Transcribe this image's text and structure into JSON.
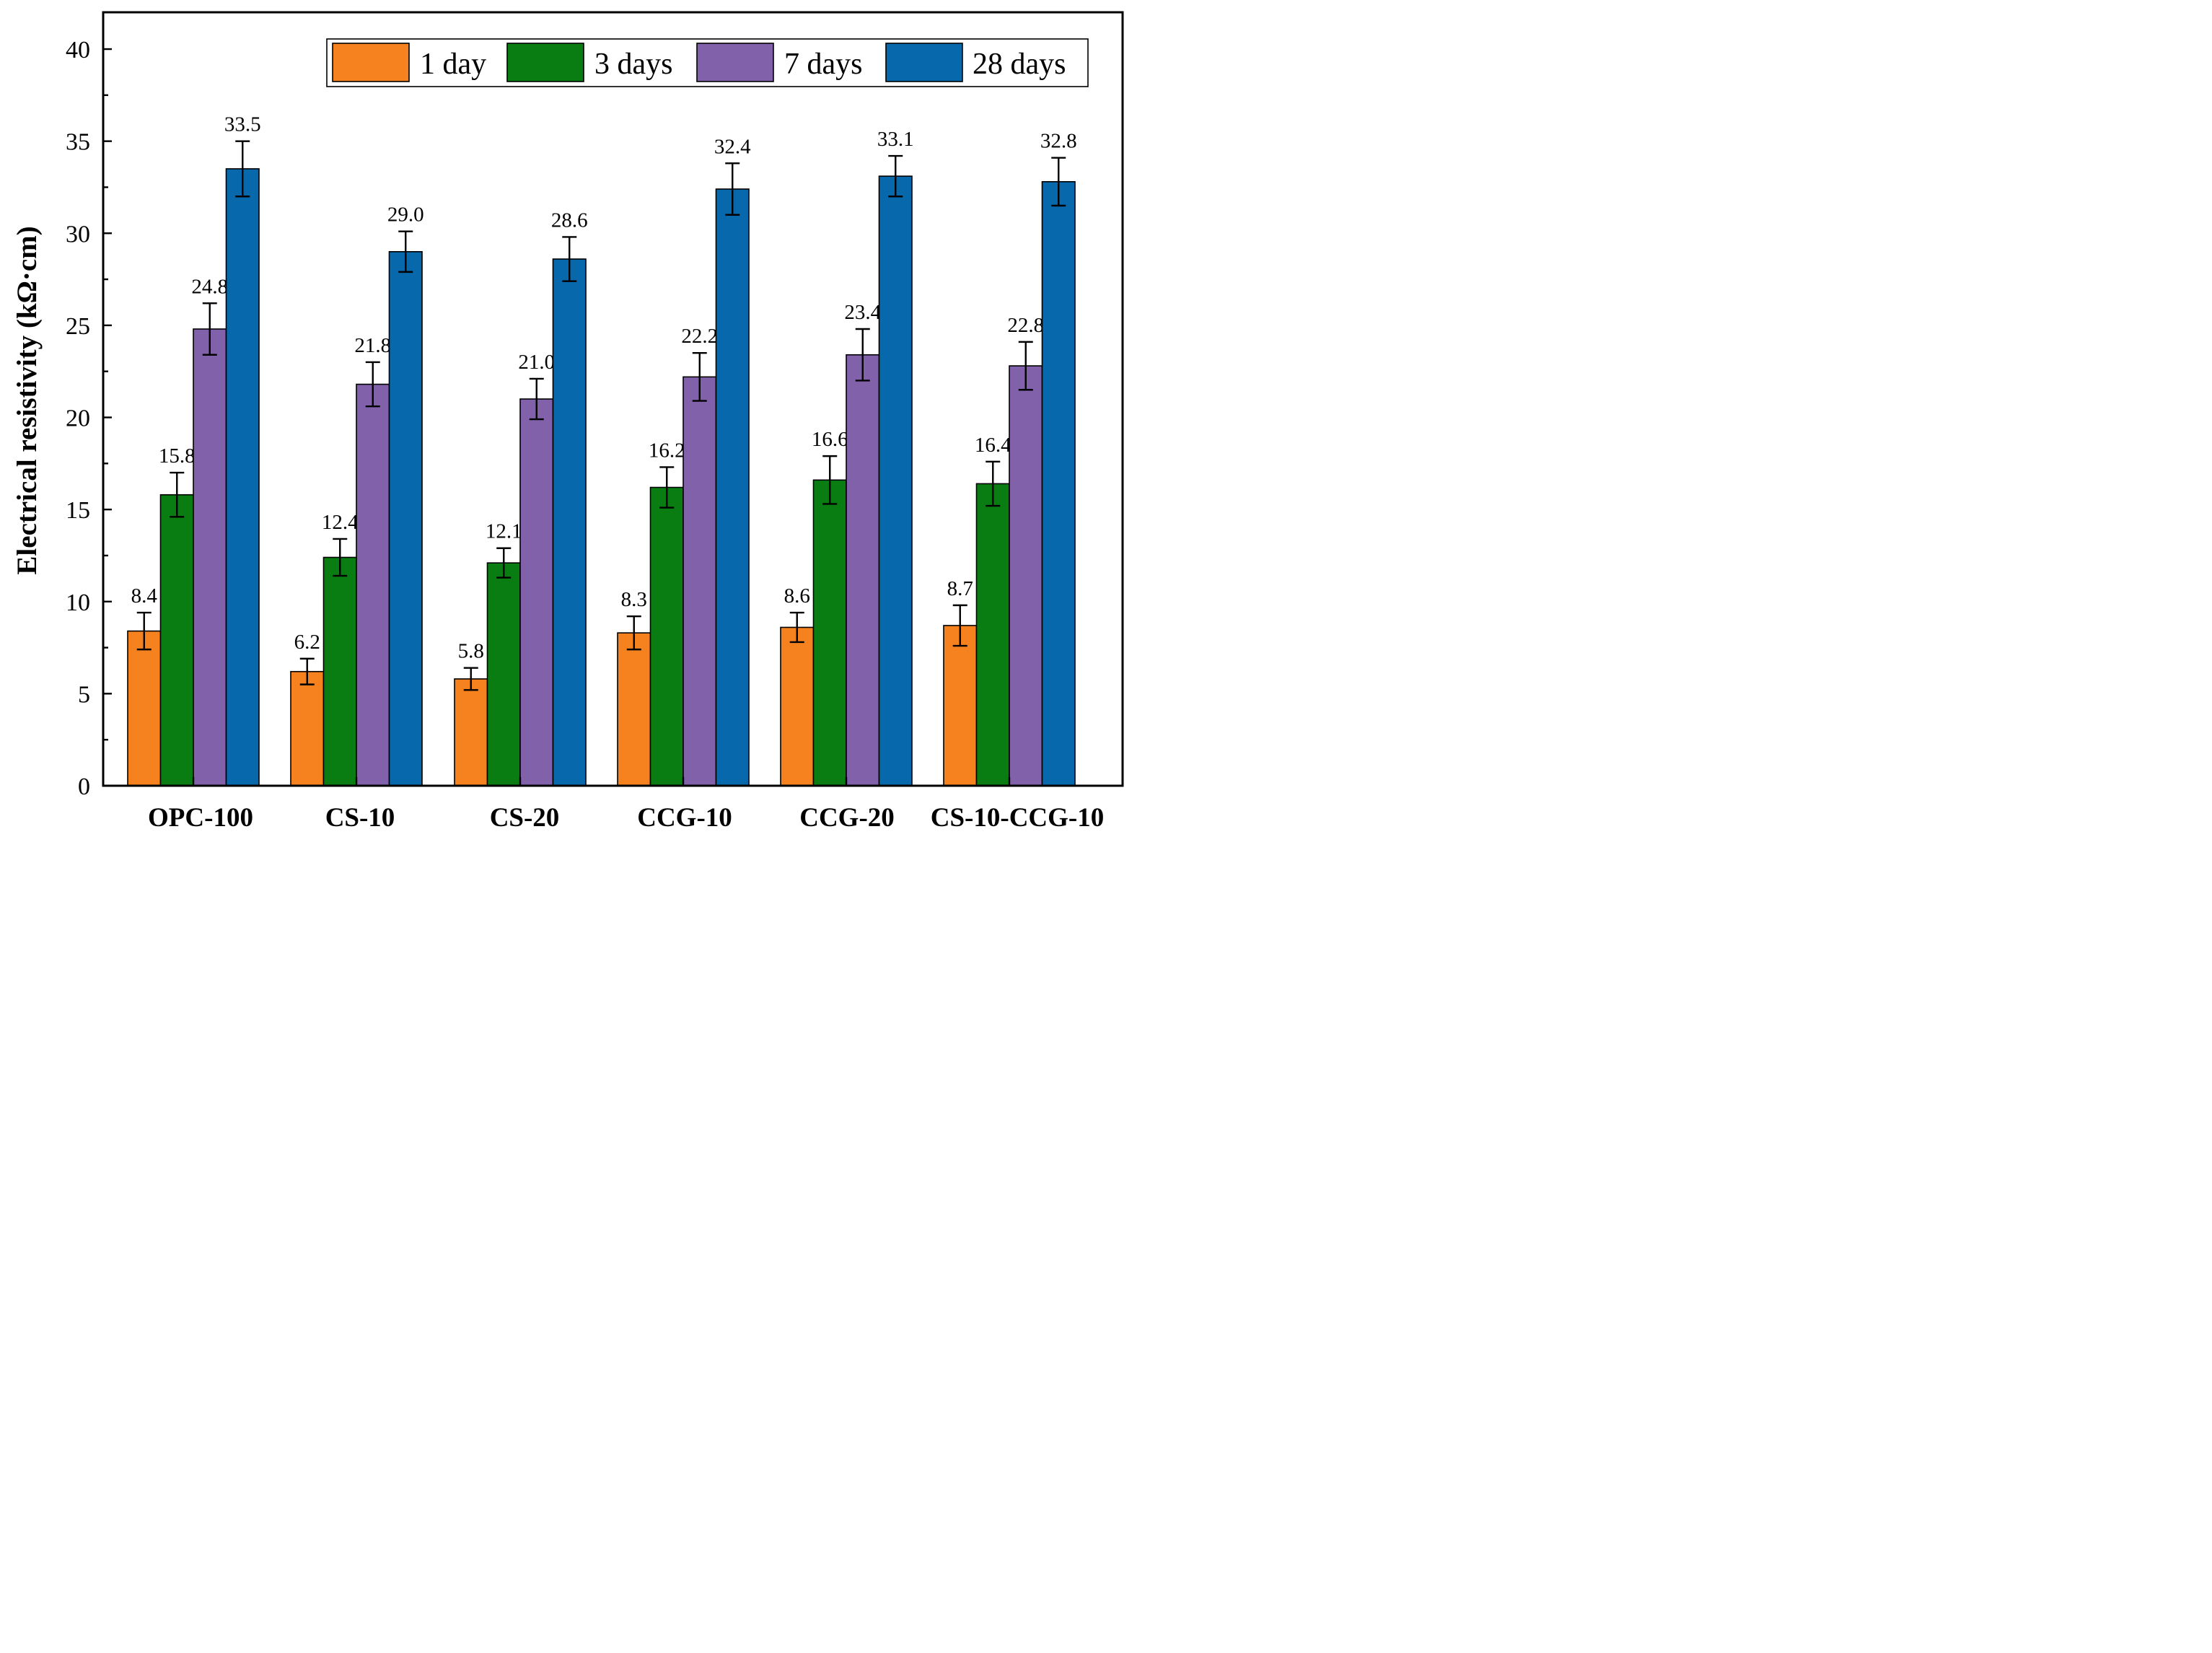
{
  "chart_data": {
    "type": "bar",
    "ylabel": "Electrical resistivity  (kΩ·cm)",
    "xlabel": "",
    "ylim": [
      0,
      42
    ],
    "yticks": [
      0,
      5,
      10,
      15,
      20,
      25,
      30,
      35,
      40
    ],
    "categories": [
      "OPC-100",
      "CS-10",
      "CS-20",
      "CCG-10",
      "CCG-20",
      "CS-10-CCG-10"
    ],
    "legend_position": "top-right",
    "series": [
      {
        "name": "1 day",
        "color": "#F5821F",
        "values": [
          8.4,
          6.2,
          5.8,
          8.3,
          8.6,
          8.7
        ],
        "value_labels": [
          "8.4",
          "6.2",
          "5.8",
          "8.3",
          "8.6",
          "8.7"
        ],
        "errors": [
          1.0,
          0.7,
          0.6,
          0.9,
          0.8,
          1.1
        ]
      },
      {
        "name": "3 days",
        "color": "#0A7D12",
        "values": [
          15.8,
          12.4,
          12.1,
          16.2,
          16.6,
          16.4
        ],
        "value_labels": [
          "15.8",
          "12.4",
          "12.1",
          "16.2",
          "16.6",
          "16.4"
        ],
        "errors": [
          1.2,
          1.0,
          0.8,
          1.1,
          1.3,
          1.2
        ]
      },
      {
        "name": "7 days",
        "color": "#8061AA",
        "values": [
          24.8,
          21.8,
          21.0,
          22.2,
          23.4,
          22.8
        ],
        "value_labels": [
          "24.8",
          "21.8",
          "21.0",
          "22.2",
          "23.4",
          "22.8"
        ],
        "errors": [
          1.4,
          1.2,
          1.1,
          1.3,
          1.4,
          1.3
        ]
      },
      {
        "name": "28 days",
        "color": "#0768AC",
        "values": [
          33.5,
          29.0,
          28.6,
          32.4,
          33.1,
          32.8
        ],
        "value_labels": [
          "33.5",
          "29.0",
          "28.6",
          "32.4",
          "33.1",
          "32.8"
        ],
        "errors": [
          1.5,
          1.1,
          1.2,
          1.4,
          1.1,
          1.3
        ]
      }
    ]
  }
}
